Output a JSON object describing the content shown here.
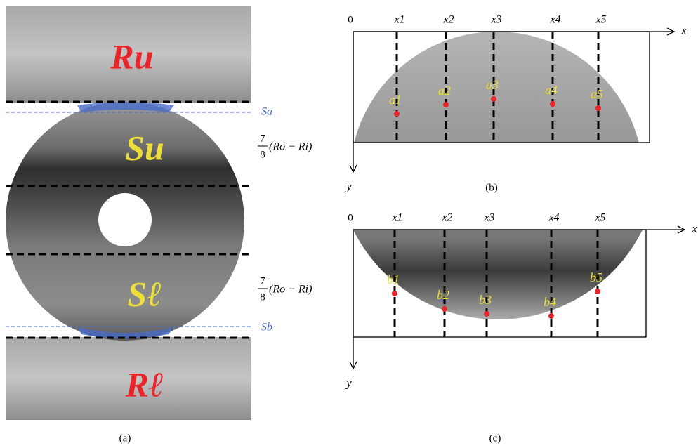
{
  "panel_a": {
    "label": "(a)",
    "regions": {
      "upper": "Ru",
      "upper_sector": "Su",
      "lower_sector": "Sℓ",
      "lower": "Rℓ"
    },
    "boundaries": {
      "upper": "Sa",
      "lower": "Sb"
    },
    "height_annotation": {
      "numerator": "7",
      "denominator": "8",
      "expression": "(Ro − Ri)"
    }
  },
  "panel_b": {
    "label": "(b)",
    "origin": "0",
    "x_axis": "x",
    "y_axis": "y",
    "columns": [
      "x1",
      "x2",
      "x3",
      "x4",
      "x5"
    ],
    "points": [
      "a1",
      "a2",
      "a3",
      "a4",
      "a5"
    ]
  },
  "panel_c": {
    "label": "(c)",
    "origin": "0",
    "x_axis": "x",
    "y_axis": "y",
    "columns": [
      "x1",
      "x2",
      "x3",
      "x4",
      "x5"
    ],
    "points": [
      "b1",
      "b2",
      "b3",
      "b4",
      "b5"
    ]
  }
}
